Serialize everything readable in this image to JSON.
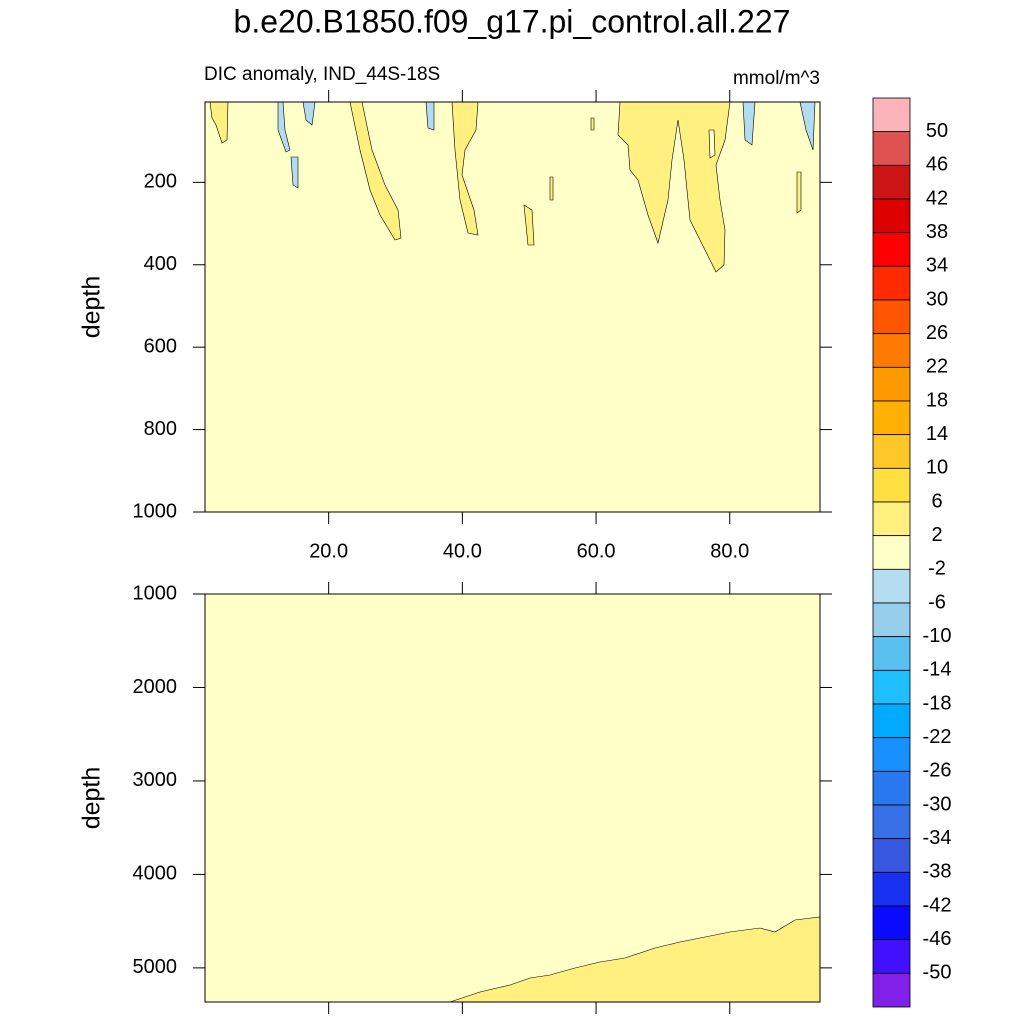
{
  "chart_data": [
    {
      "type": "contour",
      "title": "b.e20.B1850.f09_g17.pi_control.all.227",
      "subtitle": "DIC anomaly, IND_44S-18S",
      "units": "mmol/m^3",
      "y_label": "depth",
      "xlim": [
        1.5,
        93.5
      ],
      "xticks": [
        {
          "value": 20,
          "label": "20.0"
        },
        {
          "value": 40,
          "label": "40.0"
        },
        {
          "value": 60,
          "label": "60.0"
        },
        {
          "value": 80,
          "label": "80.0"
        }
      ],
      "ylim": [
        5,
        1000
      ],
      "yticks": [
        200,
        400,
        600,
        800,
        1000
      ],
      "y_reversed": true
    },
    {
      "type": "contour",
      "y_label": "depth",
      "xlim": [
        1.5,
        93.5
      ],
      "xticks": [
        20,
        40,
        60,
        80
      ],
      "ylim": [
        1000,
        5365
      ],
      "yticks": [
        1000,
        2000,
        3000,
        4000,
        5000
      ],
      "y_reversed": true
    }
  ],
  "colorbar": {
    "levels": [
      50,
      46,
      42,
      38,
      34,
      30,
      26,
      22,
      18,
      14,
      10,
      6,
      2,
      -2,
      -6,
      -10,
      -14,
      -18,
      -22,
      -26,
      -30,
      -34,
      -38,
      -42,
      -46,
      -50
    ],
    "colors": [
      "#fbb4b9",
      "#e05252",
      "#cc1414",
      "#dd0000",
      "#ff0000",
      "#ff2a00",
      "#ff5500",
      "#ff7a00",
      "#ff9900",
      "#ffb000",
      "#ffc828",
      "#ffe040",
      "#fff080",
      "#ffffc8",
      "#b3dcf0",
      "#96cde8",
      "#5ac0f0",
      "#1ebeff",
      "#00aaff",
      "#1890ff",
      "#2a78f0",
      "#3870e8",
      "#3858e0",
      "#1830f0",
      "#0a0aff",
      "#4010ff",
      "#8020e8"
    ]
  }
}
